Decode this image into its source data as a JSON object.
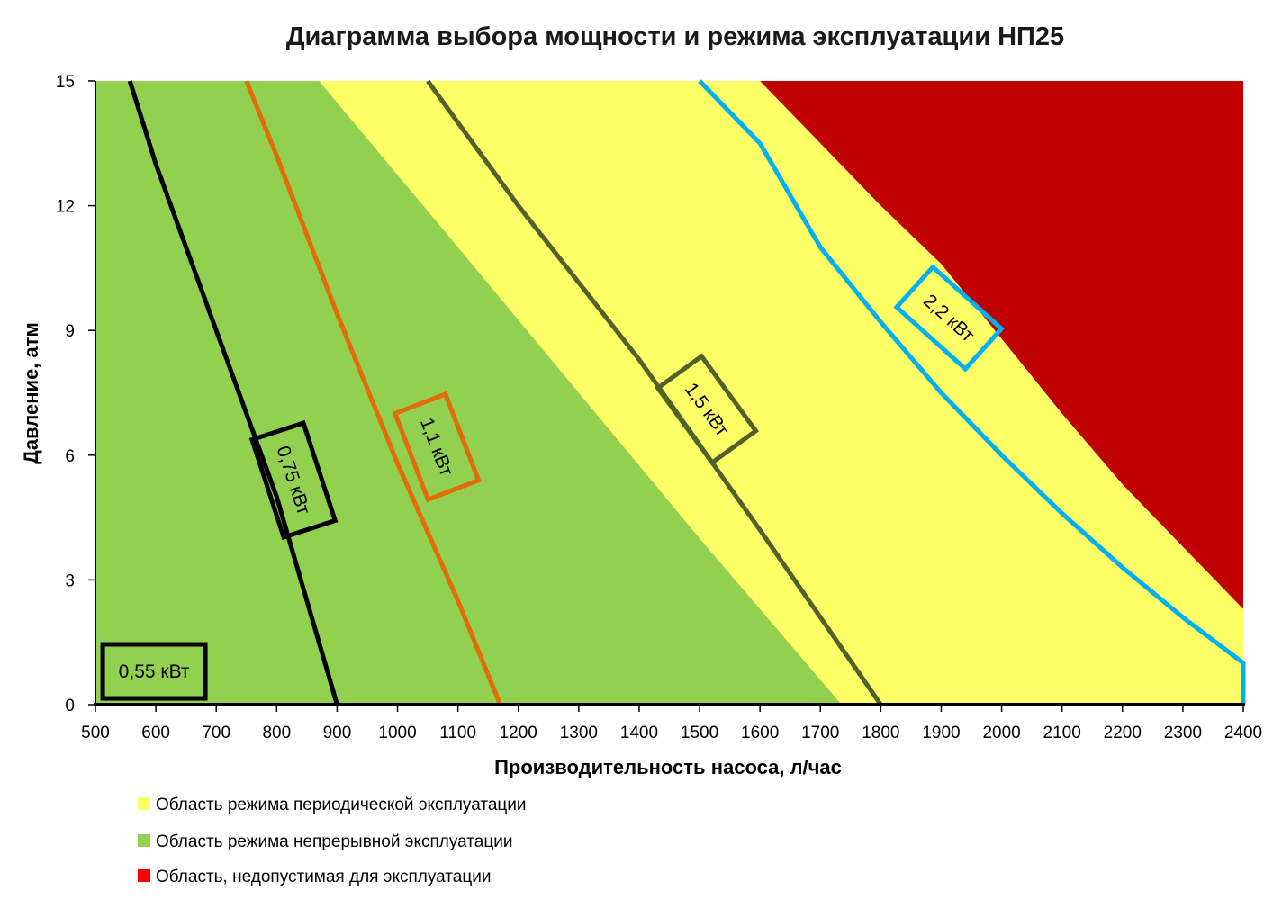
{
  "chart_data": {
    "type": "area",
    "title": "Диаграмма выбора мощности и режима эксплуатации НП25",
    "xlabel": "Производительность насоса, л/час",
    "ylabel": "Давление, атм",
    "xlim": [
      500,
      2400
    ],
    "ylim": [
      0,
      15
    ],
    "xticks": [
      "500",
      "600",
      "700",
      "800",
      "900",
      "1000",
      "1100",
      "1200",
      "1300",
      "1400",
      "1500",
      "1600",
      "1700",
      "1800",
      "1900",
      "2000",
      "2100",
      "2200",
      "2300",
      "2400"
    ],
    "yticks": [
      "0",
      "3",
      "6",
      "9",
      "12",
      "15"
    ],
    "grid": false,
    "legend_position": "bottom-left",
    "regions": [
      {
        "name": "Область режима периодической эксплуатации",
        "color": "#ffff66",
        "boundary": [
          [
            500,
            0
          ],
          [
            2400,
            0
          ],
          [
            2400,
            15
          ],
          [
            500,
            15
          ]
        ]
      },
      {
        "name": "Область режима непрерывной эксплуатации",
        "color": "#92d050",
        "boundary": [
          [
            500,
            0
          ],
          [
            1735,
            0
          ],
          [
            1500,
            4
          ],
          [
            1100,
            11
          ],
          [
            870,
            15
          ],
          [
            500,
            15
          ]
        ]
      },
      {
        "name": "Область, недопустимая для эксплуатации",
        "color": "#c00000",
        "boundary": [
          [
            1600,
            15
          ],
          [
            1700,
            13.5
          ],
          [
            1800,
            12
          ],
          [
            1900,
            10.6
          ],
          [
            2000,
            8.8
          ],
          [
            2100,
            7
          ],
          [
            2200,
            5.3
          ],
          [
            2300,
            3.8
          ],
          [
            2400,
            2.3
          ],
          [
            2400,
            15
          ]
        ]
      }
    ],
    "series": [
      {
        "name": "0,55 кВт",
        "color": "#000000",
        "points": [
          [
            500,
            0
          ]
        ]
      },
      {
        "name": "0,75 кВт",
        "color": "#000000",
        "points": [
          [
            557,
            15
          ],
          [
            600,
            13
          ],
          [
            700,
            9
          ],
          [
            800,
            5
          ],
          [
            900,
            0
          ]
        ]
      },
      {
        "name": "1,1 кВт",
        "color": "#e26b0a",
        "points": [
          [
            750,
            15
          ],
          [
            800,
            13.2
          ],
          [
            900,
            9.4
          ],
          [
            1000,
            5.8
          ],
          [
            1100,
            2.5
          ],
          [
            1170,
            0
          ]
        ]
      },
      {
        "name": "1,5 кВт",
        "color": "#4f6228",
        "points": [
          [
            1050,
            15
          ],
          [
            1200,
            12
          ],
          [
            1400,
            8.3
          ],
          [
            1600,
            4.2
          ],
          [
            1800,
            0
          ]
        ]
      },
      {
        "name": "2,2 кВт",
        "color": "#00b0f0",
        "points": [
          [
            1500,
            15
          ],
          [
            1600,
            13.5
          ],
          [
            1700,
            11
          ],
          [
            1800,
            9.2
          ],
          [
            1900,
            7.5
          ],
          [
            2000,
            6
          ],
          [
            2100,
            4.6
          ],
          [
            2200,
            3.3
          ],
          [
            2300,
            2.1
          ],
          [
            2400,
            1
          ],
          [
            2400,
            0
          ]
        ]
      }
    ],
    "curve_labels": [
      {
        "text": "0,55 кВт",
        "color": "#000000",
        "x": 597,
        "y": 0.8,
        "angle": 0
      },
      {
        "text": "0,75 кВт",
        "color": "#000000",
        "x": 828,
        "y": 5.4,
        "angle": 72
      },
      {
        "text": "1,1 кВт",
        "color": "#e26b0a",
        "x": 1065,
        "y": 6.2,
        "angle": 69
      },
      {
        "text": "1,5 кВт",
        "color": "#4f6228",
        "x": 1512,
        "y": 7.1,
        "angle": 54
      },
      {
        "text": "2,2 кВт",
        "color": "#00b0f0",
        "x": 1913,
        "y": 9.3,
        "angle": 42
      }
    ]
  }
}
